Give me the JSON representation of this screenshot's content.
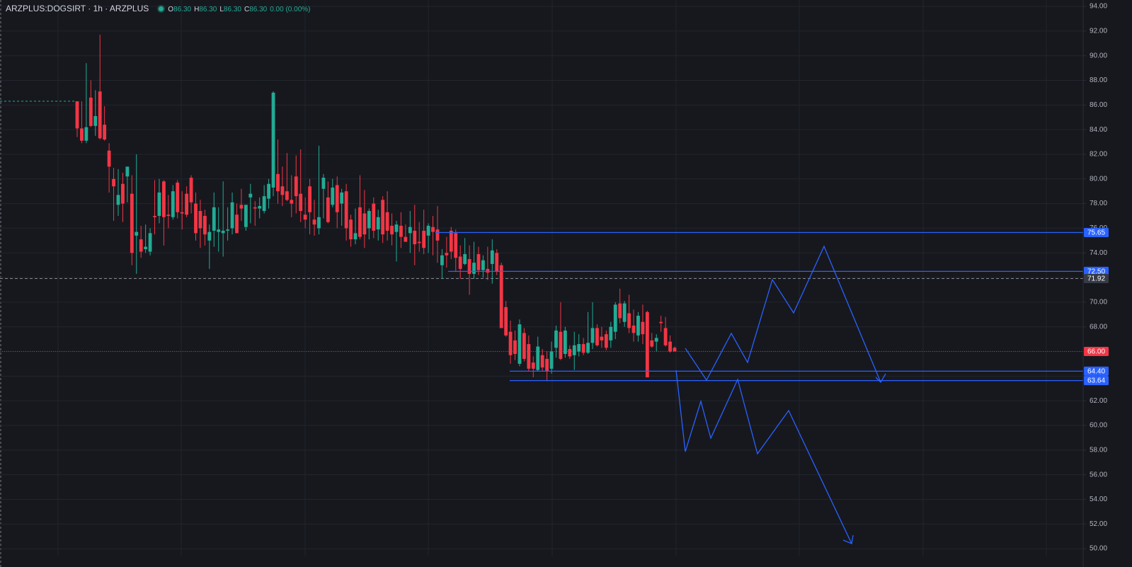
{
  "chart_data": {
    "type": "candlestick",
    "title": "ARZPLUS:DOGSIRT · 1h · ARZPLUS",
    "ohlc_legend": [
      {
        "key": "O",
        "text": "86.30"
      },
      {
        "key": "H",
        "text": "86.30"
      },
      {
        "key": "L",
        "text": "86.30"
      },
      {
        "key": "C",
        "text": "86.30"
      }
    ],
    "change": "0.00 (0.00%)",
    "up_color": "#22ab94",
    "down_color": "#f23645",
    "line_color": "#2962ff",
    "grid": true,
    "ylim": [
      49.43,
      94.52
    ],
    "yticks": [
      {
        "value": 50,
        "label": "50.00"
      },
      {
        "value": 52,
        "label": "52.00"
      },
      {
        "value": 54,
        "label": "54.00"
      },
      {
        "value": 56,
        "label": "56.00"
      },
      {
        "value": 58,
        "label": "58.00"
      },
      {
        "value": 60,
        "label": "60.00"
      },
      {
        "value": 62,
        "label": "62.00"
      },
      {
        "value": 64,
        "label": "64.00"
      },
      {
        "value": 66,
        "label": "66.00"
      },
      {
        "value": 68,
        "label": "68.00"
      },
      {
        "value": 70,
        "label": "70.00"
      },
      {
        "value": 72,
        "label": "72.00"
      },
      {
        "value": 74,
        "label": "74.00"
      },
      {
        "value": 76,
        "label": "76.00"
      },
      {
        "value": 78,
        "label": "78.00"
      },
      {
        "value": 80,
        "label": "80.00"
      },
      {
        "value": 82,
        "label": "82.00"
      },
      {
        "value": 84,
        "label": "84.00"
      },
      {
        "value": 86,
        "label": "86.00"
      },
      {
        "value": 88,
        "label": "88.00"
      },
      {
        "value": 90,
        "label": "90.00"
      },
      {
        "value": 92,
        "label": "92.00"
      },
      {
        "value": 94,
        "label": "94.00"
      }
    ],
    "hlines": [
      75.65,
      {
        "value": 72.5,
        "label": "72.50"
      },
      {
        "value": 64.4,
        "label": "64.40"
      },
      63.64
    ],
    "crosshair": 71.92,
    "last_price": {
      "value": 66,
      "label": "66.00"
    },
    "ohlc": [
      [
        86.3,
        86.3,
        83.4,
        84.1
      ],
      [
        84.1,
        86.3,
        82.9,
        83.1
      ],
      [
        83.1,
        89.4,
        82.9,
        84.2
      ],
      [
        86.6,
        88.0,
        84.2,
        84.3
      ],
      [
        84.3,
        87.2,
        83.5,
        85.1
      ],
      [
        87.1,
        91.7,
        83.2,
        83.3
      ],
      [
        84.4,
        85.9,
        83.1,
        83.2
      ],
      [
        82.3,
        82.9,
        78.9,
        81.0
      ],
      [
        80.0,
        80.9,
        76.6,
        79.4
      ],
      [
        77.9,
        80.8,
        77.0,
        78.7
      ],
      [
        79.6,
        80.5,
        76.5,
        78.0
      ],
      [
        80.2,
        80.9,
        78.1,
        81.0
      ],
      [
        78.8,
        80.3,
        73.0,
        74.0
      ],
      [
        75.4,
        82.0,
        72.3,
        75.7
      ],
      [
        75.1,
        76.2,
        73.6,
        74.1
      ],
      [
        74.3,
        76.3,
        74.0,
        74.5
      ],
      [
        74.1,
        76.0,
        73.8,
        75.6
      ],
      [
        77.0,
        79.9,
        75.5,
        76.9
      ],
      [
        77.0,
        80.0,
        76.4,
        78.9
      ],
      [
        79.8,
        79.9,
        74.6,
        76.9
      ],
      [
        77.1,
        78.7,
        76.0,
        77.0
      ],
      [
        76.9,
        79.5,
        76.7,
        79.0
      ],
      [
        79.7,
        79.9,
        76.8,
        77.3
      ],
      [
        77.3,
        79.0,
        75.9,
        77.2
      ],
      [
        78.8,
        79.4,
        76.9,
        77.1
      ],
      [
        80.1,
        80.3,
        77.2,
        78.1
      ],
      [
        78.0,
        78.9,
        75.0,
        75.6
      ],
      [
        77.4,
        78.3,
        74.4,
        76.0
      ],
      [
        77.0,
        77.5,
        74.6,
        75.5
      ],
      [
        75.0,
        76.3,
        72.7,
        75.7
      ],
      [
        75.8,
        78.9,
        74.5,
        77.7
      ],
      [
        75.7,
        77.7,
        74.1,
        75.9
      ],
      [
        75.6,
        79.8,
        73.7,
        75.8
      ],
      [
        75.8,
        77.7,
        75.0,
        75.9
      ],
      [
        76.0,
        78.9,
        75.5,
        78.1
      ],
      [
        77.1,
        78.0,
        75.6,
        75.6
      ],
      [
        77.9,
        79.2,
        76.6,
        77.6
      ],
      [
        76.1,
        77.8,
        75.8,
        77.9
      ],
      [
        78.5,
        79.6,
        76.4,
        78.8
      ],
      [
        77.7,
        78.2,
        76.2,
        77.6
      ],
      [
        77.6,
        78.5,
        76.8,
        77.8
      ],
      [
        77.4,
        79.5,
        77.2,
        78.6
      ],
      [
        78.4,
        80.0,
        77.6,
        79.6
      ],
      [
        79.3,
        87.1,
        78.6,
        87.0
      ],
      [
        80.4,
        83.2,
        78.0,
        79.0
      ],
      [
        79.4,
        81.0,
        77.8,
        78.7
      ],
      [
        79.0,
        82.1,
        78.2,
        78.3
      ],
      [
        78.3,
        80.3,
        76.9,
        78.0
      ],
      [
        80.2,
        81.9,
        77.2,
        78.6
      ],
      [
        78.8,
        82.4,
        76.5,
        77.4
      ],
      [
        77.1,
        78.5,
        76.0,
        76.7
      ],
      [
        79.4,
        80.0,
        75.5,
        77.3
      ],
      [
        76.7,
        78.3,
        75.4,
        76.3
      ],
      [
        76.0,
        82.7,
        75.5,
        76.9
      ],
      [
        79.2,
        80.4,
        76.8,
        80.1
      ],
      [
        78.5,
        79.8,
        76.4,
        76.5
      ],
      [
        77.9,
        80.0,
        77.7,
        79.3
      ],
      [
        79.5,
        80.2,
        76.0,
        77.3
      ],
      [
        78.0,
        79.2,
        76.2,
        78.9
      ],
      [
        79.0,
        79.6,
        75.0,
        76.0
      ],
      [
        76.7,
        77.1,
        74.5,
        75.1
      ],
      [
        75.1,
        77.6,
        74.7,
        75.6
      ],
      [
        77.7,
        80.3,
        75.1,
        75.3
      ],
      [
        77.2,
        79.1,
        74.4,
        75.5
      ],
      [
        76.0,
        77.6,
        75.1,
        77.4
      ],
      [
        78.0,
        78.5,
        75.2,
        75.8
      ],
      [
        75.9,
        77.5,
        75.0,
        76.9
      ],
      [
        78.3,
        78.6,
        74.8,
        75.5
      ],
      [
        77.3,
        79.0,
        75.0,
        75.8
      ],
      [
        76.2,
        77.2,
        74.6,
        75.5
      ],
      [
        75.7,
        76.6,
        73.3,
        76.3
      ],
      [
        76.2,
        77.3,
        74.4,
        75.3
      ],
      [
        75.3,
        76.3,
        74.9,
        74.9
      ],
      [
        75.6,
        77.4,
        74.0,
        76.1
      ],
      [
        75.8,
        77.9,
        73.0,
        74.7
      ],
      [
        74.9,
        76.5,
        74.1,
        74.8
      ],
      [
        75.8,
        77.5,
        73.9,
        74.4
      ],
      [
        75.4,
        76.4,
        74.0,
        76.2
      ],
      [
        76.1,
        77.0,
        73.8,
        75.7
      ],
      [
        75.9,
        77.8,
        73.2,
        75.0
      ],
      [
        73.0,
        74.3,
        71.9,
        73.8
      ],
      [
        74.0,
        75.3,
        72.8,
        73.8
      ],
      [
        75.8,
        76.1,
        73.5,
        74.1
      ],
      [
        75.6,
        75.9,
        72.5,
        73.6
      ],
      [
        73.7,
        74.6,
        71.9,
        72.7
      ],
      [
        73.1,
        75.2,
        73.0,
        73.9
      ],
      [
        73.5,
        74.6,
        70.6,
        72.3
      ],
      [
        72.3,
        74.9,
        71.9,
        73.2
      ],
      [
        73.9,
        74.5,
        72.2,
        72.6
      ],
      [
        72.6,
        73.8,
        72.0,
        73.4
      ],
      [
        72.7,
        74.5,
        71.8,
        72.4
      ],
      [
        73.1,
        75.1,
        71.5,
        74.2
      ],
      [
        74.0,
        74.3,
        72.2,
        72.5
      ],
      [
        73.0,
        73.2,
        67.9,
        67.9
      ],
      [
        69.6,
        70.1,
        67.2,
        67.3
      ],
      [
        67.6,
        68.5,
        65.0,
        65.7
      ],
      [
        66.9,
        67.7,
        65.3,
        65.8
      ],
      [
        65.0,
        68.6,
        64.8,
        68.2
      ],
      [
        67.5,
        67.9,
        65.2,
        65.4
      ],
      [
        66.6,
        67.3,
        64.4,
        64.6
      ],
      [
        65.1,
        65.6,
        63.9,
        64.6
      ],
      [
        64.5,
        67.2,
        64.4,
        66.4
      ],
      [
        65.7,
        66.2,
        64.4,
        64.7
      ],
      [
        65.4,
        66.0,
        63.6,
        64.4
      ],
      [
        64.6,
        66.8,
        64.2,
        66.0
      ],
      [
        66.3,
        68.1,
        65.5,
        67.7
      ],
      [
        67.6,
        70.0,
        65.3,
        65.4
      ],
      [
        65.8,
        68.0,
        65.5,
        67.7
      ],
      [
        66.2,
        66.5,
        65.4,
        65.6
      ],
      [
        65.7,
        67.6,
        64.5,
        66.5
      ],
      [
        66.0,
        67.4,
        65.6,
        66.6
      ],
      [
        66.6,
        67.1,
        65.7,
        65.9
      ],
      [
        65.9,
        69.2,
        65.8,
        66.7
      ],
      [
        66.7,
        70.0,
        66.2,
        67.9
      ],
      [
        67.9,
        68.2,
        66.4,
        66.5
      ],
      [
        67.2,
        68.0,
        66.3,
        66.9
      ],
      [
        67.4,
        67.7,
        66.1,
        66.3
      ],
      [
        66.9,
        68.4,
        66.3,
        68.0
      ],
      [
        67.6,
        70.0,
        67.0,
        69.8
      ],
      [
        69.9,
        71.1,
        68.3,
        68.7
      ],
      [
        68.4,
        70.1,
        68.0,
        69.9
      ],
      [
        69.1,
        70.6,
        67.5,
        67.9
      ],
      [
        68.1,
        69.4,
        66.8,
        67.5
      ],
      [
        67.3,
        69.2,
        66.8,
        68.9
      ],
      [
        68.4,
        69.8,
        66.6,
        67.4
      ],
      [
        69.2,
        69.3,
        63.9,
        63.9
      ],
      [
        66.9,
        67.5,
        66.3,
        66.4
      ],
      [
        66.8,
        67.4,
        66.0,
        67.1
      ],
      [
        68.4,
        68.9,
        67.6,
        68.3
      ],
      [
        67.9,
        68.8,
        66.4,
        66.5
      ],
      [
        66.8,
        67.3,
        65.9,
        66.0
      ],
      [
        66.3,
        66.4,
        66.0,
        66.0
      ]
    ]
  }
}
